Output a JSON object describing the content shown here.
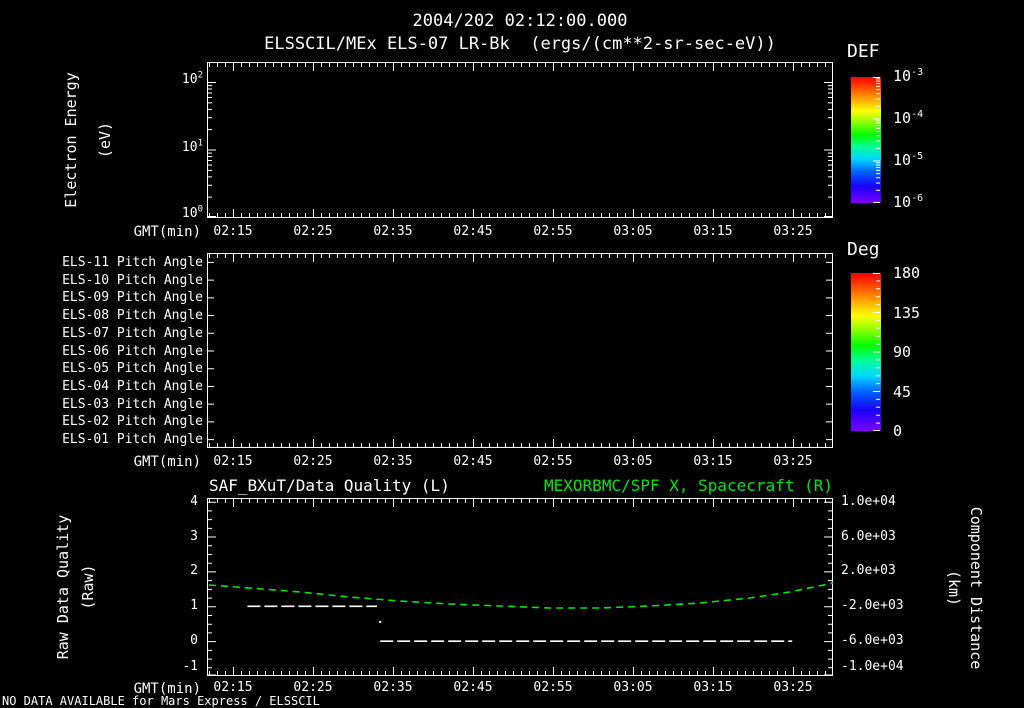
{
  "title": "2004/202 02:12:00.000",
  "subtitle": "ELSSCIL/MEx ELS-07 LR-Bk  (ergs/(cm**2-sr-sec-eV))",
  "footer_notice": "NO DATA AVAILABLE for Mars Express / ELSSCIL",
  "colors": {
    "foreground": "#ffffff",
    "background": "#000000",
    "series_green": "#00e414",
    "colormap_stops": [
      "#7d00ff 0%",
      "#1a00ff 13%",
      "#0064ff 25%",
      "#00d8ff 35%",
      "#00ff90 45%",
      "#00ff00 54%",
      "#8cff00 64%",
      "#ffff00 73%",
      "#ff9600 84%",
      "#ff2800 95%",
      "#ff0000 100%"
    ]
  },
  "time_axis": {
    "label": "GMT(min)",
    "tick_labels": [
      "02:15",
      "02:25",
      "02:35",
      "02:45",
      "02:55",
      "03:05",
      "03:15",
      "03:25"
    ],
    "tick_minutes": [
      3,
      13,
      23,
      33,
      43,
      53,
      63,
      73
    ],
    "start": "02:12",
    "end": "03:30",
    "minutes_total": 78
  },
  "panel_energy": {
    "ylabel_line1": "Electron Energy",
    "ylabel_line2": "(eV)",
    "ytick_base": "10",
    "ytick_exponents": [
      "0",
      "1",
      "2"
    ],
    "colorbar_title": "DEF",
    "colorbar_base": "10",
    "colorbar_exponents": [
      "-3",
      "-4",
      "-5",
      "-6"
    ]
  },
  "panel_pitch": {
    "row_labels": [
      "ELS-11 Pitch Angle",
      "ELS-10 Pitch Angle",
      "ELS-09 Pitch Angle",
      "ELS-08 Pitch Angle",
      "ELS-07 Pitch Angle",
      "ELS-06 Pitch Angle",
      "ELS-05 Pitch Angle",
      "ELS-04 Pitch Angle",
      "ELS-03 Pitch Angle",
      "ELS-02 Pitch Angle",
      "ELS-01 Pitch Angle"
    ],
    "colorbar_title": "Deg",
    "colorbar_ticks": [
      180,
      135,
      90,
      45,
      0
    ]
  },
  "panel_quality": {
    "left_title": "SAF_BXuT/Data Quality (L)",
    "right_title": "MEXORBMC/SPF X, Spacecraft (R)",
    "ylabel_line1": "Raw Data Quality",
    "ylabel_line2": "(Raw)",
    "right_ylabel_line1": "Component Distance",
    "right_ylabel_line2": "(km)",
    "left_ticks": [
      4,
      3,
      2,
      1,
      0,
      -1
    ],
    "right_tick_labels": [
      "1.0e+04",
      "6.0e+03",
      "2.0e+03",
      "-2.0e+03",
      "-6.0e+03",
      "-1.0e+04"
    ]
  },
  "chart_data": [
    {
      "type": "heatmap",
      "title": "2004/202 02:12:00.000",
      "subtitle": "ELSSCIL/MEx ELS-07 LR-Bk (ergs/(cm**2-sr-sec-eV))",
      "xlabel": "GMT(min)",
      "ylabel": "Electron Energy (eV)",
      "x_range": [
        "02:12",
        "03:30"
      ],
      "x_ticks": [
        "02:15",
        "02:25",
        "02:35",
        "02:45",
        "02:55",
        "03:05",
        "03:15",
        "03:25"
      ],
      "y_scale": "log",
      "y_ticks": [
        1,
        10,
        100
      ],
      "colorbar": {
        "title": "DEF",
        "scale": "log",
        "tick_values": [
          0.001,
          0.0001,
          1e-05,
          1e-06
        ]
      },
      "values": [],
      "note": "panel empty - NO DATA AVAILABLE"
    },
    {
      "type": "heatmap",
      "xlabel": "GMT(min)",
      "x_range": [
        "02:12",
        "03:30"
      ],
      "x_ticks": [
        "02:15",
        "02:25",
        "02:35",
        "02:45",
        "02:55",
        "03:05",
        "03:15",
        "03:25"
      ],
      "rows": [
        "ELS-11 Pitch Angle",
        "ELS-10 Pitch Angle",
        "ELS-09 Pitch Angle",
        "ELS-08 Pitch Angle",
        "ELS-07 Pitch Angle",
        "ELS-06 Pitch Angle",
        "ELS-05 Pitch Angle",
        "ELS-04 Pitch Angle",
        "ELS-03 Pitch Angle",
        "ELS-02 Pitch Angle",
        "ELS-01 Pitch Angle"
      ],
      "colorbar": {
        "title": "Deg",
        "range": [
          0,
          180
        ],
        "ticks": [
          180,
          135,
          90,
          45,
          0
        ]
      },
      "values": [],
      "note": "panel empty - NO DATA AVAILABLE"
    },
    {
      "type": "line",
      "xlabel": "GMT(min)",
      "x_range": [
        "02:12",
        "03:30"
      ],
      "x_ticks": [
        "02:15",
        "02:25",
        "02:35",
        "02:45",
        "02:55",
        "03:05",
        "03:15",
        "03:25"
      ],
      "left_axis": {
        "label": "Raw Data Quality (Raw)",
        "range": [
          -1,
          4
        ]
      },
      "right_axis": {
        "label": "Component Distance (km)",
        "range": [
          -10000,
          10000
        ]
      },
      "grid": false,
      "series": [
        {
          "name": "SAF_BXuT/Data Quality (L)",
          "axis": "left",
          "color": "#ffffff",
          "style": "dashed",
          "segments": [
            {
              "x": [
                "02:17",
                "02:33"
              ],
              "x_minutes": [
                4.8,
                21.0
              ],
              "y": [
                1,
                1
              ]
            },
            {
              "x": [
                "02:33",
                "03:25"
              ],
              "x_minutes": [
                21.4,
                72.9
              ],
              "y": [
                0,
                0
              ]
            }
          ],
          "transition_point": {
            "x": "02:33",
            "x_minutes": 21.4,
            "y": 0.55
          }
        },
        {
          "name": "MEXORBMC/SPF X, Spacecraft (R)",
          "axis": "right",
          "color": "#00e414",
          "style": "dashed",
          "x": [
            "02:12",
            "02:17",
            "02:23",
            "02:30",
            "02:36",
            "02:42",
            "02:48",
            "02:55",
            "03:01",
            "03:07",
            "03:13",
            "03:20",
            "03:25",
            "03:30"
          ],
          "x_minutes": [
            0,
            5.1,
            11.4,
            17.6,
            23.9,
            30.1,
            36.4,
            42.6,
            48.9,
            55.1,
            61.4,
            67.6,
            72.6,
            78
          ],
          "y": [
            440,
            100,
            -360,
            -940,
            -1400,
            -1740,
            -1970,
            -2200,
            -2200,
            -1970,
            -1620,
            -1050,
            -360,
            670
          ]
        }
      ]
    }
  ]
}
